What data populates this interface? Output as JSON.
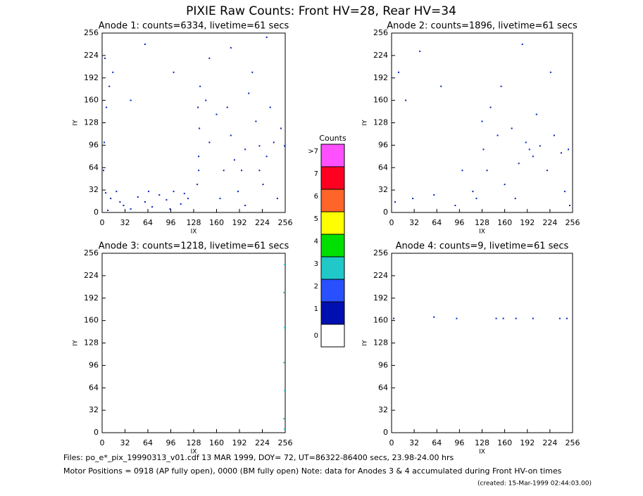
{
  "title": "PIXIE Raw Counts:  Front HV=28, Rear HV=34",
  "chart_data": [
    {
      "type": "scatter",
      "title": "Anode 1: counts=6334, livetime=61 secs",
      "xlabel": "IX",
      "ylabel": "IY",
      "xlim": [
        0,
        256
      ],
      "ylim": [
        0,
        256
      ],
      "xticks": [
        0,
        32,
        64,
        96,
        128,
        160,
        192,
        224,
        256
      ],
      "yticks": [
        0,
        32,
        64,
        96,
        128,
        160,
        192,
        224,
        256
      ],
      "color": "#0020c0",
      "x": [
        5,
        12,
        20,
        30,
        40,
        50,
        60,
        70,
        80,
        90,
        100,
        110,
        120,
        8,
        25,
        65,
        95,
        115,
        133,
        135,
        136,
        134,
        137,
        135,
        150,
        160,
        170,
        180,
        190,
        200,
        205,
        210,
        220,
        230,
        240,
        250,
        215,
        175,
        195,
        225,
        245,
        165,
        185,
        235,
        255,
        145,
        200,
        220,
        3,
        6,
        10,
        2,
        15,
        4,
        60,
        100,
        180,
        230,
        150,
        40
      ],
      "y": [
        28,
        20,
        30,
        10,
        5,
        22,
        15,
        8,
        25,
        18,
        30,
        12,
        20,
        3,
        15,
        30,
        5,
        27,
        40,
        80,
        120,
        150,
        180,
        60,
        100,
        140,
        60,
        110,
        30,
        90,
        170,
        200,
        95,
        80,
        100,
        120,
        130,
        150,
        60,
        40,
        20,
        20,
        75,
        150,
        95,
        160,
        10,
        60,
        100,
        150,
        180,
        60,
        200,
        220,
        240,
        200,
        235,
        250,
        220,
        160
      ]
    },
    {
      "type": "scatter",
      "title": "Anode 2: counts=1896, livetime=61 secs",
      "xlabel": "IX",
      "ylabel": "IY",
      "xlim": [
        0,
        256
      ],
      "ylim": [
        0,
        256
      ],
      "xticks": [
        0,
        32,
        64,
        96,
        128,
        160,
        192,
        224,
        256
      ],
      "yticks": [
        0,
        32,
        64,
        96,
        128,
        160,
        192,
        224,
        256
      ],
      "color": "#0020c0",
      "x": [
        5,
        30,
        60,
        90,
        115,
        120,
        10,
        20,
        40,
        70,
        128,
        130,
        135,
        140,
        150,
        160,
        170,
        180,
        190,
        195,
        200,
        210,
        220,
        230,
        240,
        250,
        245,
        252,
        205,
        175,
        155,
        225,
        185,
        100
      ],
      "y": [
        15,
        20,
        25,
        10,
        30,
        20,
        200,
        160,
        230,
        180,
        130,
        90,
        60,
        150,
        110,
        40,
        120,
        70,
        100,
        90,
        80,
        95,
        60,
        110,
        85,
        90,
        30,
        10,
        140,
        20,
        180,
        200,
        240,
        60
      ]
    },
    {
      "type": "scatter",
      "title": "Anode 3: counts=1218, livetime=61 secs",
      "xlabel": "IX",
      "ylabel": "IY",
      "xlim": [
        0,
        256
      ],
      "ylim": [
        0,
        256
      ],
      "xticks": [
        0,
        32,
        64,
        96,
        128,
        160,
        192,
        224,
        256
      ],
      "yticks": [
        0,
        32,
        64,
        96,
        128,
        160,
        192,
        224,
        256
      ],
      "color": "#20c8c8",
      "x": [
        254,
        255,
        254,
        255,
        254,
        255,
        255
      ],
      "y": [
        20,
        60,
        100,
        150,
        200,
        240,
        5
      ]
    },
    {
      "type": "scatter",
      "title": "Anode 4: counts=9, livetime=61 secs",
      "xlabel": "IX",
      "ylabel": "IY",
      "xlim": [
        0,
        256
      ],
      "ylim": [
        0,
        256
      ],
      "xticks": [
        0,
        32,
        64,
        96,
        128,
        160,
        192,
        224,
        256
      ],
      "yticks": [
        0,
        32,
        64,
        96,
        128,
        160,
        192,
        224,
        256
      ],
      "color": "#0020c0",
      "x": [
        3,
        60,
        92,
        148,
        158,
        176,
        200,
        238,
        248
      ],
      "y": [
        163,
        165,
        163,
        163,
        163,
        163,
        163,
        163,
        163
      ]
    },
    {
      "type": "colorbar",
      "title": "Counts",
      "categories": [
        "0",
        "1",
        "2",
        "3",
        "4",
        "5",
        "6",
        "7",
        ">7"
      ],
      "colors": [
        "#ffffff",
        "#0010b0",
        "#2850ff",
        "#20c8c8",
        "#00e000",
        "#ffff00",
        "#ff6428",
        "#ff0020",
        "#ff50ff"
      ]
    }
  ],
  "notes": [
    "Files: po_e*_pix_19990313_v01.cdf    13 MAR 1999, DOY= 72, UT=86322-86400 secs, 23.98-24.00 hrs",
    "Motor Positions = 0918 (AP fully open), 0000 (BM fully open)    Note: data for Anodes 3 & 4 accumulated during Front HV-on times",
    "(created: 15-Mar-1999 02:44:03.00)"
  ]
}
